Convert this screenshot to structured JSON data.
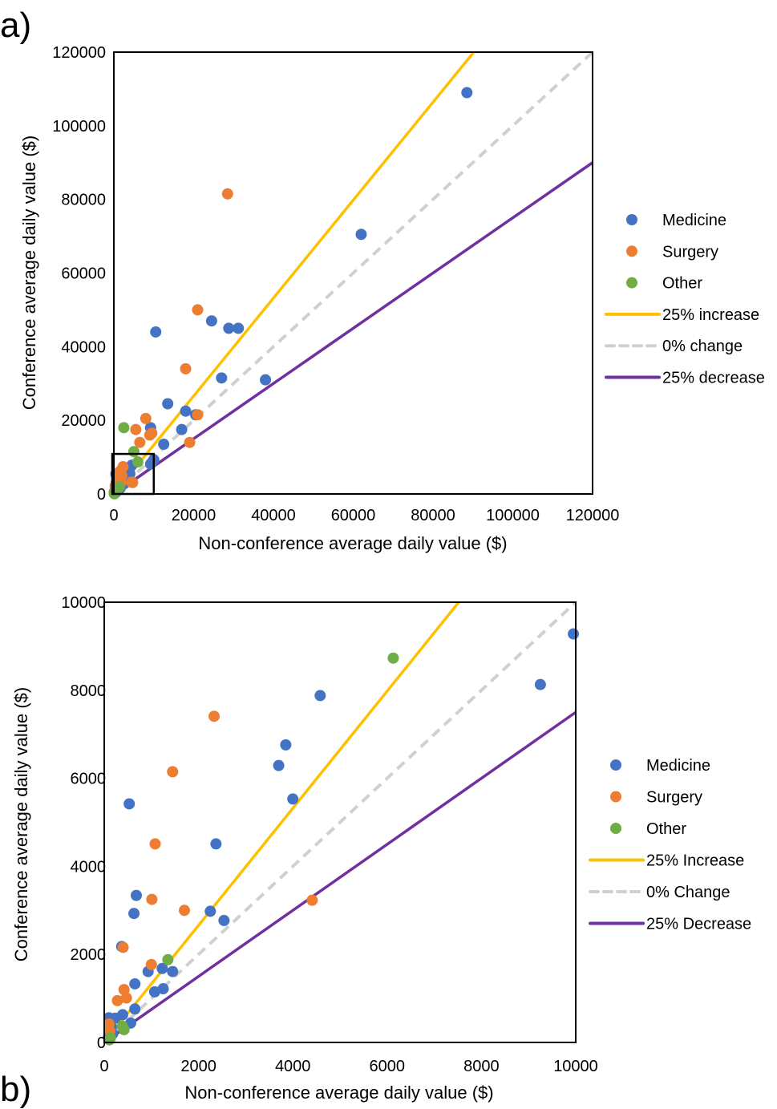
{
  "chart_data": [
    {
      "panel_label": "a)",
      "type": "scatter",
      "title": "",
      "xlabel": "Non-conference average daily value ($)",
      "ylabel": "Conference average daily value ($)",
      "xlim": [
        0,
        120000
      ],
      "ylim": [
        0,
        120000
      ],
      "xticks": [
        "0",
        "20000",
        "40000",
        "60000",
        "80000",
        "100000",
        "120000"
      ],
      "yticks": [
        "0",
        "20000",
        "40000",
        "60000",
        "80000",
        "100000",
        "120000"
      ],
      "grid": false,
      "legend_position": "right",
      "inset_box": {
        "x": [
          0,
          10000
        ],
        "y": [
          0,
          10000
        ]
      },
      "series": [
        {
          "name": "Medicine",
          "color": "#4472C4",
          "points": [
            [
              88500,
              109000
            ],
            [
              62000,
              70500
            ],
            [
              24500,
              47000
            ],
            [
              28800,
              45000
            ],
            [
              31200,
              45000
            ],
            [
              10500,
              44000
            ],
            [
              27000,
              31500
            ],
            [
              38000,
              31000
            ],
            [
              13500,
              24500
            ],
            [
              18000,
              22500
            ],
            [
              20500,
              21500
            ],
            [
              9200,
              18000
            ],
            [
              17000,
              17500
            ],
            [
              12500,
              13500
            ],
            [
              9500,
              8500
            ],
            [
              4500,
              7800
            ],
            [
              3800,
              6800
            ],
            [
              3700,
              6300
            ],
            [
              4000,
              5500
            ],
            [
              500,
              5400
            ],
            [
              2400,
              4500
            ],
            [
              2300,
              3000
            ],
            [
              2600,
              2800
            ],
            [
              600,
              2900
            ],
            [
              700,
              3300
            ],
            [
              350,
              2200
            ],
            [
              1300,
              1700
            ],
            [
              900,
              1600
            ],
            [
              1600,
              1600
            ],
            [
              700,
              1300
            ],
            [
              1100,
              1200
            ],
            [
              1300,
              1250
            ],
            [
              250,
              600
            ],
            [
              400,
              600
            ],
            [
              550,
              500
            ],
            [
              100,
              500
            ],
            [
              150,
              300
            ],
            [
              9200,
              8100
            ],
            [
              10000,
              9300
            ],
            [
              200,
              100
            ]
          ]
        },
        {
          "name": "Surgery",
          "color": "#ED7D31",
          "points": [
            [
              28500,
              81500
            ],
            [
              21000,
              50000
            ],
            [
              18000,
              34000
            ],
            [
              8000,
              20500
            ],
            [
              21000,
              21500
            ],
            [
              5500,
              17500
            ],
            [
              9500,
              16500
            ],
            [
              9000,
              16000
            ],
            [
              6500,
              14000
            ],
            [
              19000,
              14000
            ],
            [
              2300,
              7400
            ],
            [
              1500,
              6100
            ],
            [
              1100,
              4500
            ],
            [
              1000,
              3200
            ],
            [
              1700,
              3000
            ],
            [
              4400,
              3200
            ],
            [
              400,
              2200
            ],
            [
              1000,
              1800
            ],
            [
              450,
              1200
            ],
            [
              300,
              900
            ],
            [
              500,
              1000
            ],
            [
              100,
              450
            ],
            [
              150,
              300
            ],
            [
              4700,
              3100
            ],
            [
              2000,
              5000
            ],
            [
              200,
              200
            ]
          ]
        },
        {
          "name": "Other",
          "color": "#70AD47",
          "points": [
            [
              2500,
              18000
            ],
            [
              5000,
              11500
            ],
            [
              6000,
              8700
            ],
            [
              1400,
              1900
            ],
            [
              450,
              350
            ],
            [
              350,
              250
            ],
            [
              100,
              100
            ],
            [
              150,
              50
            ]
          ]
        }
      ],
      "reference_lines": [
        {
          "name": "25% increase",
          "color": "#FFC000",
          "slope": 1.33,
          "style": "solid"
        },
        {
          "name": "0% change",
          "color": "#D0D0D0",
          "slope": 1.0,
          "style": "dashed"
        },
        {
          "name": "25% decrease",
          "color": "#7030A0",
          "slope": 0.75,
          "style": "solid"
        }
      ],
      "legend": [
        "Medicine",
        "Surgery",
        "Other",
        "25% increase",
        "0% change",
        "25% decrease"
      ]
    },
    {
      "panel_label": "b)",
      "type": "scatter",
      "title": "",
      "xlabel": "Non-conference average daily value ($)",
      "ylabel": "Conference average daily value ($)",
      "xlim": [
        0,
        10000
      ],
      "ylim": [
        0,
        10000
      ],
      "xticks": [
        "0",
        "2000",
        "4000",
        "6000",
        "8000",
        "10000"
      ],
      "yticks": [
        "0",
        "2000",
        "4000",
        "6000",
        "8000",
        "10000"
      ],
      "grid": false,
      "legend_position": "right",
      "series": [
        {
          "name": "Medicine",
          "color": "#4472C4",
          "points": [
            [
              9950,
              9280
            ],
            [
              9250,
              8130
            ],
            [
              4580,
              7880
            ],
            [
              3850,
              6760
            ],
            [
              3700,
              6290
            ],
            [
              4000,
              5530
            ],
            [
              530,
              5420
            ],
            [
              2370,
              4510
            ],
            [
              680,
              3340
            ],
            [
              630,
              2930
            ],
            [
              2250,
              2980
            ],
            [
              2540,
              2770
            ],
            [
              370,
              2180
            ],
            [
              1230,
              1680
            ],
            [
              930,
              1610
            ],
            [
              1450,
              1610
            ],
            [
              650,
              1330
            ],
            [
              1070,
              1150
            ],
            [
              1250,
              1220
            ],
            [
              390,
              630
            ],
            [
              230,
              550
            ],
            [
              650,
              760
            ],
            [
              560,
              440
            ],
            [
              100,
              560
            ],
            [
              150,
              350
            ],
            [
              180,
              200
            ],
            [
              90,
              120
            ]
          ]
        },
        {
          "name": "Surgery",
          "color": "#ED7D31",
          "points": [
            [
              2330,
              7410
            ],
            [
              1450,
              6150
            ],
            [
              1080,
              4510
            ],
            [
              1010,
              3250
            ],
            [
              1700,
              3000
            ],
            [
              4410,
              3230
            ],
            [
              400,
              2160
            ],
            [
              1000,
              1770
            ],
            [
              420,
              1200
            ],
            [
              280,
              950
            ],
            [
              470,
              1010
            ],
            [
              100,
              420
            ],
            [
              120,
              260
            ]
          ]
        },
        {
          "name": "Other",
          "color": "#70AD47",
          "points": [
            [
              6130,
              8730
            ],
            [
              1350,
              1880
            ],
            [
              420,
              290
            ],
            [
              380,
              370
            ],
            [
              130,
              100
            ],
            [
              110,
              60
            ]
          ]
        }
      ],
      "reference_lines": [
        {
          "name": "25% Increase",
          "color": "#FFC000",
          "slope": 1.33,
          "style": "solid"
        },
        {
          "name": "0% Change",
          "color": "#D0D0D0",
          "slope": 1.0,
          "style": "dashed"
        },
        {
          "name": "25% Decrease",
          "color": "#7030A0",
          "slope": 0.75,
          "style": "solid"
        }
      ],
      "legend": [
        "Medicine",
        "Surgery",
        "Other",
        "25% Increase",
        "0% Change",
        "25% Decrease"
      ]
    }
  ]
}
